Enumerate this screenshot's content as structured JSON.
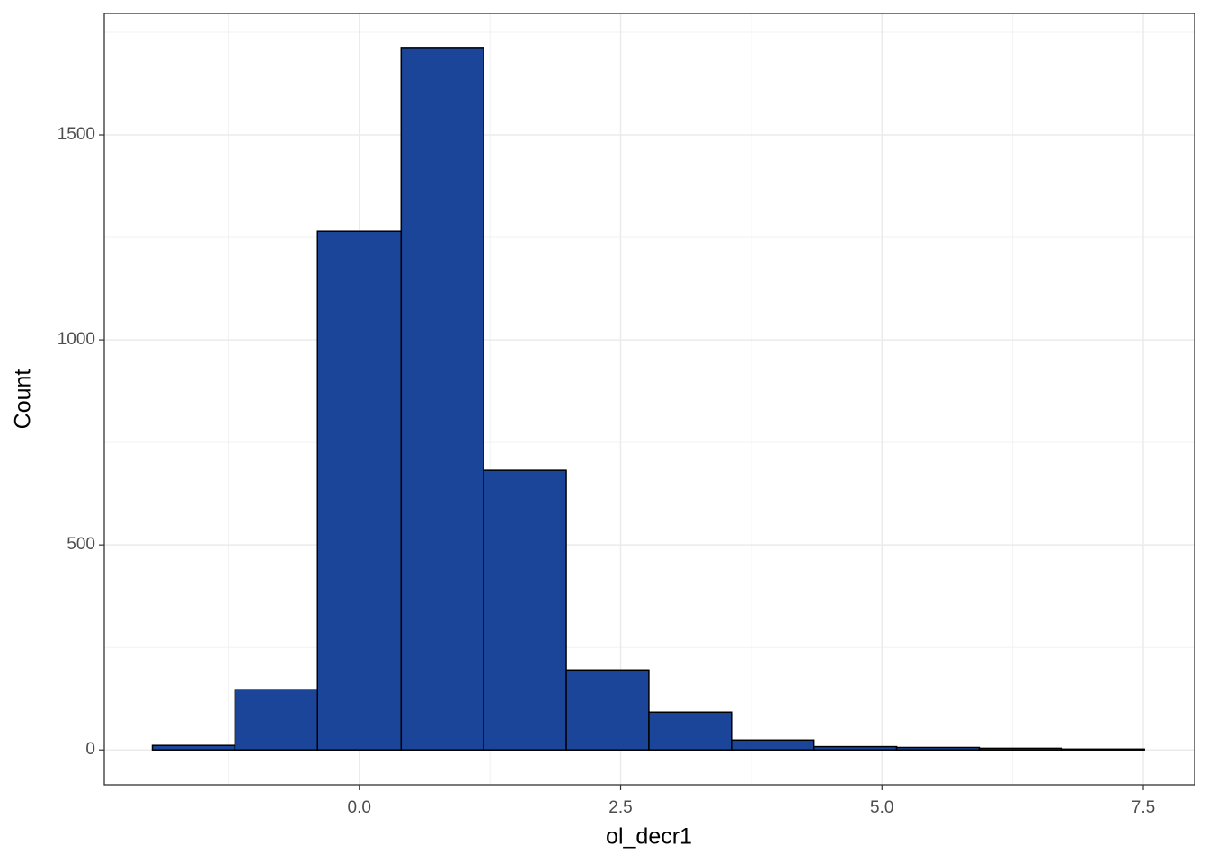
{
  "chart_data": {
    "type": "histogram",
    "x_label": "ol_decr1",
    "y_label": "Count",
    "bins": [
      -1.98,
      -1.19,
      -0.4,
      0.4,
      1.19,
      1.98,
      2.77,
      3.56,
      4.35,
      5.14,
      5.93,
      6.72,
      7.51
    ],
    "values": [
      11,
      147,
      1265,
      1713,
      682,
      195,
      92,
      24,
      8,
      6,
      4,
      2
    ],
    "color": "#1a4599",
    "edge_color": "#000000",
    "xlim": [
      -2.44,
      7.99
    ],
    "ylim": [
      -85,
      1796
    ],
    "xticks": [
      {
        "value": 0,
        "label": "0.0"
      },
      2.5,
      {
        "value": 5,
        "label": "5.0"
      },
      7.5
    ],
    "yticks": [
      0,
      500,
      1000,
      1500
    ],
    "minor_xticks": [
      -1.25,
      1.25,
      3.75,
      6.25
    ],
    "minor_yticks": [
      250,
      750,
      1250,
      1750
    ],
    "grid": true
  }
}
